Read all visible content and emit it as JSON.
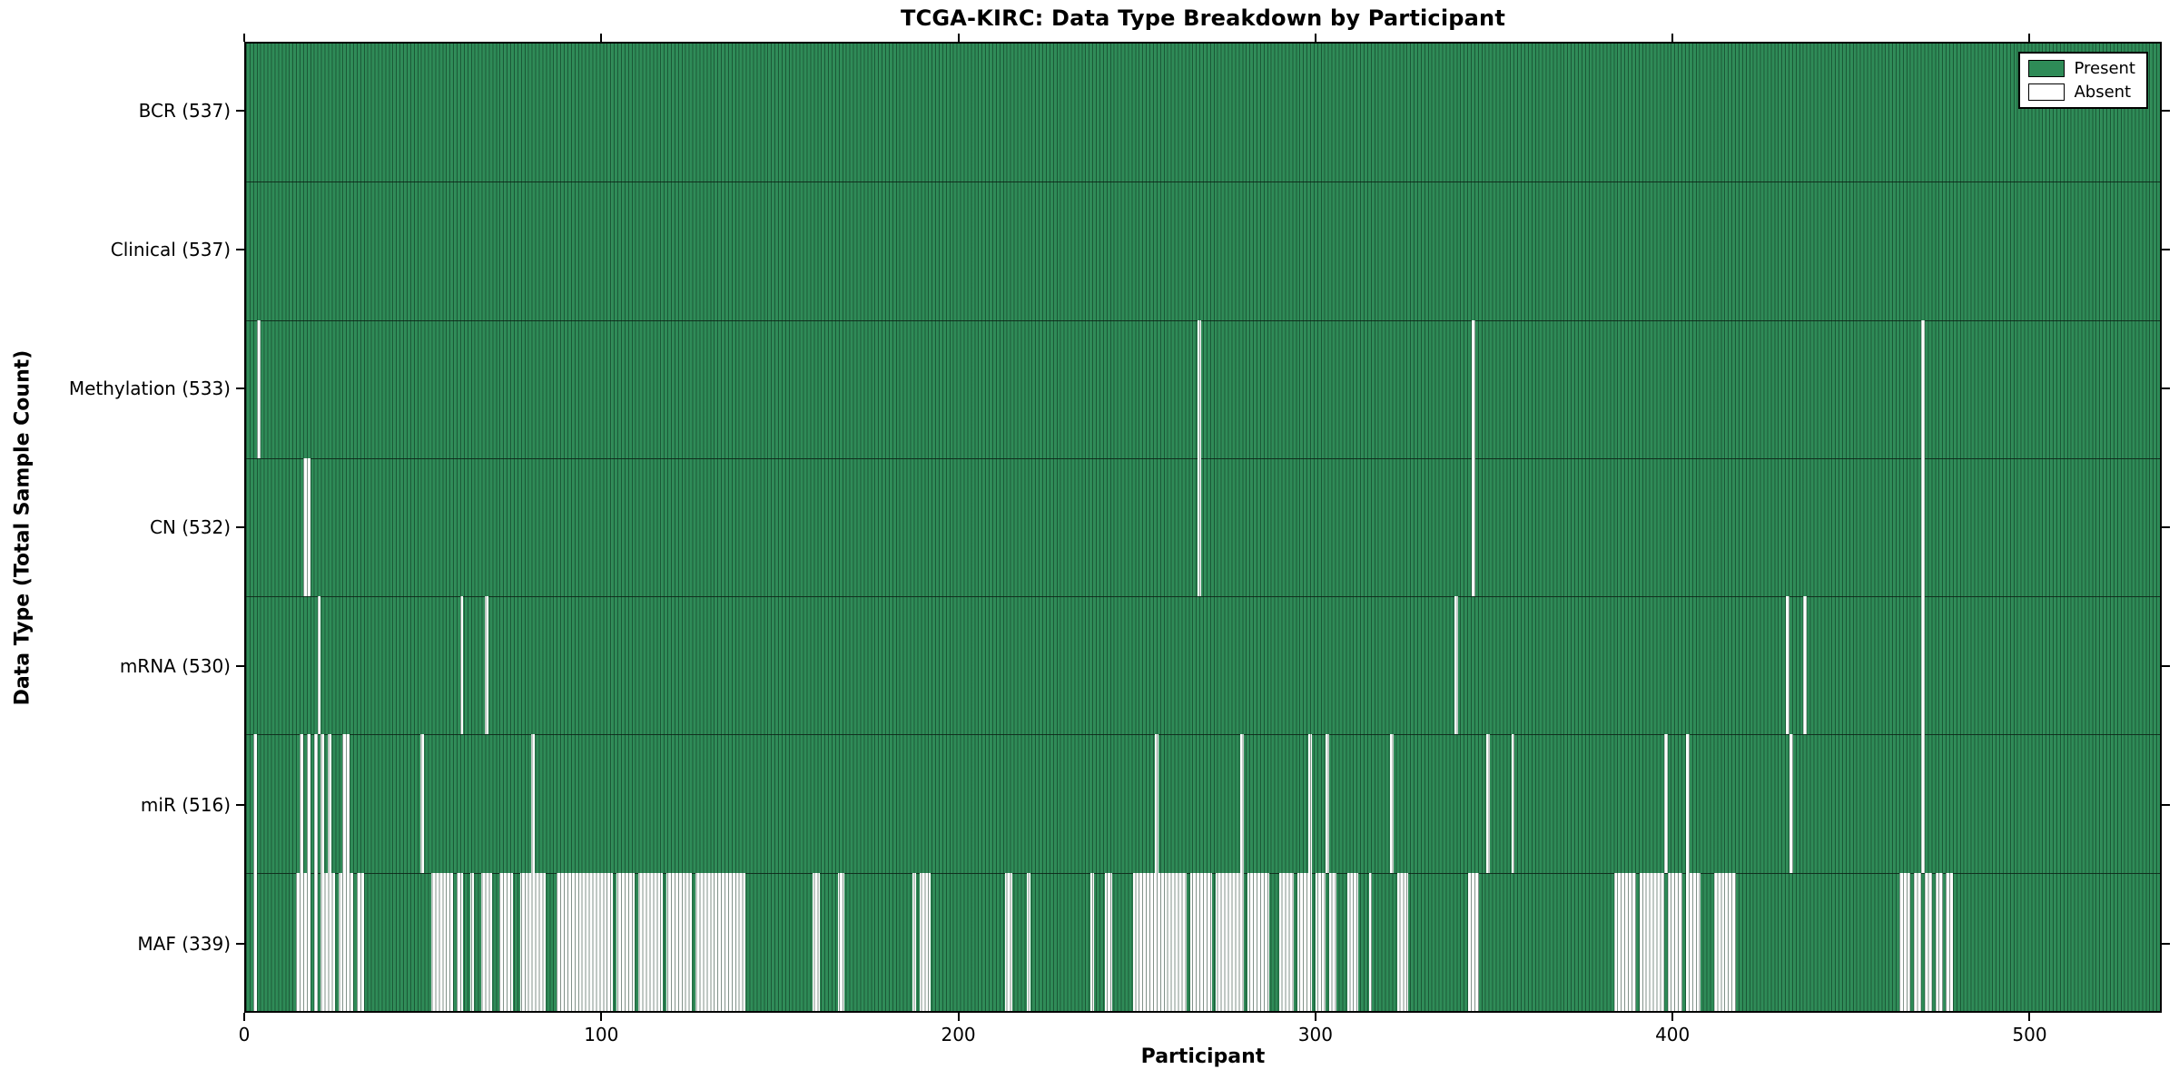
{
  "chart_data": {
    "type": "heatmap",
    "title": "TCGA-KIRC: Data Type Breakdown by Participant",
    "xlabel": "Participant",
    "ylabel": "Data Type (Total Sample Count)",
    "x_range": [
      0,
      537
    ],
    "n_participants": 537,
    "x_ticks": [
      0,
      100,
      200,
      300,
      400,
      500
    ],
    "grid": false,
    "legend_position": "upper right",
    "colors": {
      "present": "#2e8b57",
      "absent": "#ffffff",
      "bar_edge": "#0b2e1b",
      "axis": "#000000",
      "background": "#ffffff"
    },
    "legend": [
      {
        "label": "Present",
        "color": "#2e8b57"
      },
      {
        "label": "Absent",
        "color": "#ffffff"
      }
    ],
    "rows": [
      {
        "label": "BCR (537)",
        "data_type": "BCR",
        "present_count": 537,
        "absent_count": 0,
        "absent_ranges": []
      },
      {
        "label": "Clinical (537)",
        "data_type": "Clinical",
        "present_count": 537,
        "absent_count": 0,
        "absent_ranges": []
      },
      {
        "label": "Methylation (533)",
        "data_type": "Methylation",
        "present_count": 533,
        "absent_count": 4,
        "absent_ranges": [
          [
            3,
            3
          ],
          [
            267,
            267
          ],
          [
            344,
            344
          ],
          [
            470,
            470
          ]
        ]
      },
      {
        "label": "CN (532)",
        "data_type": "CN",
        "present_count": 532,
        "absent_count": 5,
        "absent_ranges": [
          [
            16,
            17
          ],
          [
            267,
            267
          ],
          [
            344,
            344
          ],
          [
            470,
            470
          ]
        ]
      },
      {
        "label": "mRNA (530)",
        "data_type": "mRNA",
        "present_count": 530,
        "absent_count": 7,
        "absent_ranges": [
          [
            20,
            20
          ],
          [
            60,
            60
          ],
          [
            67,
            67
          ],
          [
            339,
            339
          ],
          [
            432,
            432
          ],
          [
            437,
            437
          ],
          [
            470,
            470
          ]
        ]
      },
      {
        "label": "miR (516)",
        "data_type": "miR",
        "present_count": 516,
        "absent_count": 21,
        "absent_ranges": [
          [
            2,
            2
          ],
          [
            15,
            15
          ],
          [
            17,
            17
          ],
          [
            19,
            19
          ],
          [
            21,
            21
          ],
          [
            23,
            23
          ],
          [
            27,
            28
          ],
          [
            49,
            49
          ],
          [
            80,
            80
          ],
          [
            255,
            255
          ],
          [
            279,
            279
          ],
          [
            298,
            298
          ],
          [
            303,
            303
          ],
          [
            321,
            321
          ],
          [
            348,
            348
          ],
          [
            355,
            355
          ],
          [
            398,
            398
          ],
          [
            404,
            404
          ],
          [
            433,
            433
          ],
          [
            470,
            470
          ]
        ]
      },
      {
        "label": "MAF (339)",
        "data_type": "MAF",
        "present_count": 339,
        "absent_count": 198,
        "absent_ranges": [
          [
            2,
            2
          ],
          [
            14,
            17
          ],
          [
            19,
            19
          ],
          [
            21,
            24
          ],
          [
            26,
            29
          ],
          [
            31,
            32
          ],
          [
            52,
            57
          ],
          [
            59,
            60
          ],
          [
            63,
            63
          ],
          [
            66,
            68
          ],
          [
            71,
            74
          ],
          [
            77,
            83
          ],
          [
            87,
            102
          ],
          [
            104,
            108
          ],
          [
            110,
            116
          ],
          [
            118,
            124
          ],
          [
            126,
            139
          ],
          [
            159,
            160
          ],
          [
            166,
            167
          ],
          [
            187,
            187
          ],
          [
            189,
            191
          ],
          [
            213,
            214
          ],
          [
            219,
            219
          ],
          [
            237,
            237
          ],
          [
            241,
            242
          ],
          [
            249,
            263
          ],
          [
            265,
            270
          ],
          [
            272,
            279
          ],
          [
            281,
            286
          ],
          [
            290,
            293
          ],
          [
            295,
            298
          ],
          [
            300,
            302
          ],
          [
            304,
            305
          ],
          [
            309,
            311
          ],
          [
            315,
            315
          ],
          [
            323,
            325
          ],
          [
            343,
            345
          ],
          [
            384,
            389
          ],
          [
            391,
            397
          ],
          [
            399,
            402
          ],
          [
            404,
            407
          ],
          [
            412,
            417
          ],
          [
            464,
            466
          ],
          [
            468,
            469
          ],
          [
            471,
            472
          ],
          [
            474,
            475
          ],
          [
            477,
            478
          ]
        ]
      }
    ]
  }
}
